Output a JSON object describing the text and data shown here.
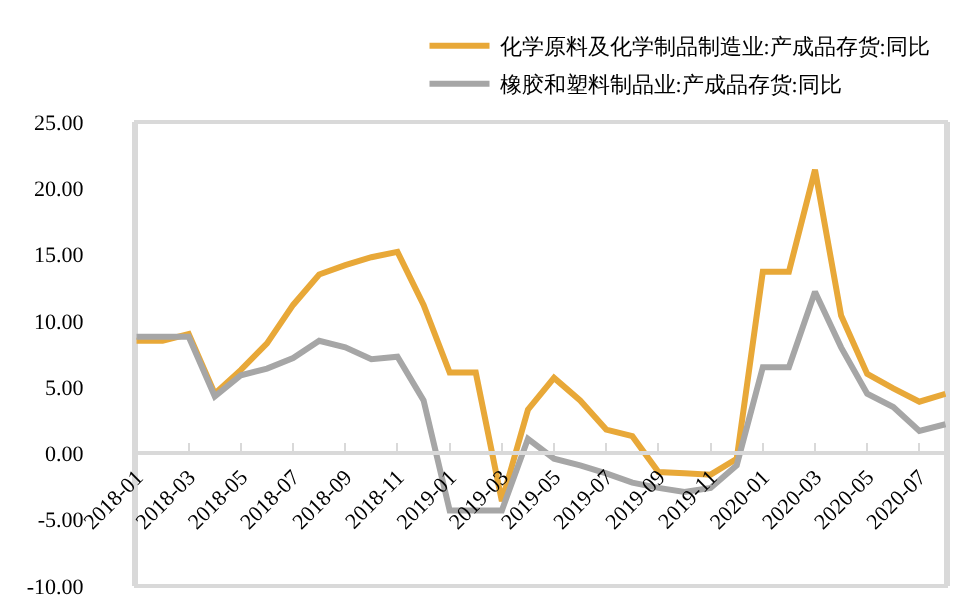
{
  "chart_data": {
    "type": "line",
    "categories": [
      "2018-01",
      null,
      "2018-03",
      null,
      "2018-05",
      null,
      "2018-07",
      null,
      "2018-09",
      null,
      "2018-11",
      null,
      "2019-01",
      null,
      "2019-03",
      null,
      "2019-05",
      null,
      "2019-07",
      null,
      "2019-09",
      null,
      "2019-11",
      null,
      "2020-01",
      null,
      "2020-03",
      null,
      "2020-05",
      null,
      "2020-07",
      null
    ],
    "series": [
      {
        "name": "化学原料及化学制品制造业:产成品存货:同比",
        "color": "#e8a838",
        "values": [
          8.5,
          8.5,
          9.0,
          4.5,
          6.3,
          8.3,
          11.2,
          13.5,
          14.2,
          14.8,
          15.2,
          11.2,
          6.1,
          6.1,
          -3.6,
          3.3,
          5.7,
          4.0,
          1.8,
          1.3,
          -1.4,
          -1.5,
          -1.6,
          -0.4,
          13.7,
          13.7,
          21.4,
          10.4,
          6.0,
          4.9,
          3.9,
          4.5
        ]
      },
      {
        "name": "橡胶和塑料制品业:产成品存货:同比",
        "color": "#a6a6a6",
        "values": [
          8.8,
          8.8,
          8.8,
          4.3,
          5.9,
          6.4,
          7.2,
          8.5,
          8.0,
          7.1,
          7.3,
          4.0,
          -4.3,
          -4.3,
          -4.3,
          1.1,
          -0.4,
          -0.9,
          -1.5,
          -2.2,
          -2.6,
          -2.9,
          -2.6,
          -0.9,
          6.5,
          6.5,
          12.2,
          8.0,
          4.5,
          3.5,
          1.7,
          2.2
        ]
      }
    ],
    "ylim": [
      -10,
      25
    ],
    "yticks": [
      {
        "value": 25,
        "label": "25.00"
      },
      {
        "value": 20,
        "label": "20.00"
      },
      {
        "value": 15,
        "label": "15.00"
      },
      {
        "value": 10,
        "label": "10.00"
      },
      {
        "value": 5,
        "label": "5.00"
      },
      {
        "value": 0,
        "label": "0.00"
      },
      {
        "value": -5,
        "label": "-5.00"
      },
      {
        "value": -10,
        "label": "-10.00"
      }
    ],
    "grid": false,
    "legend": "top",
    "marker": "none",
    "line_style": "solid"
  }
}
